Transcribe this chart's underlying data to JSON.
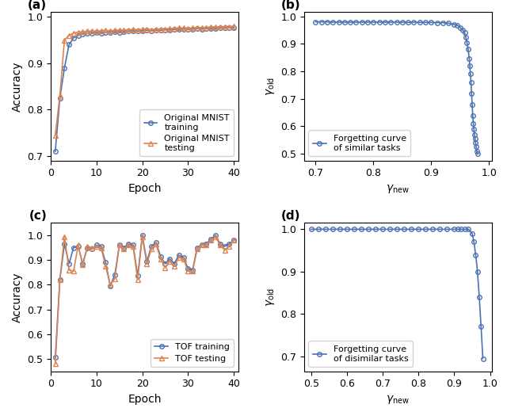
{
  "panel_a": {
    "train_x": [
      1,
      2,
      3,
      4,
      5,
      6,
      7,
      8,
      9,
      10,
      11,
      12,
      13,
      14,
      15,
      16,
      17,
      18,
      19,
      20,
      21,
      22,
      23,
      24,
      25,
      26,
      27,
      28,
      29,
      30,
      31,
      32,
      33,
      34,
      35,
      36,
      37,
      38,
      39,
      40
    ],
    "train_y": [
      0.71,
      0.825,
      0.89,
      0.94,
      0.955,
      0.96,
      0.963,
      0.964,
      0.965,
      0.966,
      0.965,
      0.966,
      0.967,
      0.968,
      0.967,
      0.968,
      0.969,
      0.97,
      0.969,
      0.97,
      0.971,
      0.97,
      0.971,
      0.971,
      0.972,
      0.972,
      0.973,
      0.973,
      0.974,
      0.973,
      0.974,
      0.975,
      0.974,
      0.975,
      0.975,
      0.975,
      0.976,
      0.976,
      0.977,
      0.977
    ],
    "test_x": [
      1,
      2,
      3,
      4,
      5,
      6,
      7,
      8,
      9,
      10,
      11,
      12,
      13,
      14,
      15,
      16,
      17,
      18,
      19,
      20,
      21,
      22,
      23,
      24,
      25,
      26,
      27,
      28,
      29,
      30,
      31,
      32,
      33,
      34,
      35,
      36,
      37,
      38,
      39,
      40
    ],
    "test_y": [
      0.745,
      0.83,
      0.95,
      0.96,
      0.965,
      0.967,
      0.968,
      0.969,
      0.97,
      0.969,
      0.97,
      0.971,
      0.97,
      0.971,
      0.972,
      0.971,
      0.972,
      0.973,
      0.972,
      0.973,
      0.973,
      0.972,
      0.973,
      0.974,
      0.974,
      0.975,
      0.975,
      0.976,
      0.976,
      0.975,
      0.976,
      0.977,
      0.977,
      0.977,
      0.978,
      0.978,
      0.978,
      0.979,
      0.979,
      0.98
    ],
    "xlabel": "Epoch",
    "ylabel": "Accuracy",
    "xlim": [
      0,
      41
    ],
    "ylim": [
      0.69,
      1.01
    ],
    "yticks": [
      0.7,
      0.8,
      0.9,
      1.0
    ],
    "xticks": [
      0,
      10,
      20,
      30,
      40
    ],
    "legend": [
      "Original MNIST\ntraining",
      "Original MNIST\ntesting"
    ],
    "label": "(a)"
  },
  "panel_b": {
    "x": [
      0.7,
      0.71,
      0.72,
      0.73,
      0.74,
      0.75,
      0.76,
      0.77,
      0.78,
      0.79,
      0.8,
      0.81,
      0.82,
      0.83,
      0.84,
      0.85,
      0.86,
      0.87,
      0.88,
      0.89,
      0.9,
      0.91,
      0.92,
      0.93,
      0.94,
      0.945,
      0.95,
      0.955,
      0.958,
      0.96,
      0.962,
      0.964,
      0.966,
      0.967,
      0.968,
      0.969,
      0.97,
      0.971,
      0.972,
      0.973,
      0.974,
      0.975,
      0.976,
      0.977,
      0.978,
      0.979,
      0.98
    ],
    "y": [
      0.98,
      0.98,
      0.98,
      0.979,
      0.979,
      0.979,
      0.979,
      0.979,
      0.979,
      0.979,
      0.979,
      0.979,
      0.979,
      0.979,
      0.979,
      0.979,
      0.978,
      0.979,
      0.978,
      0.978,
      0.978,
      0.977,
      0.977,
      0.975,
      0.97,
      0.968,
      0.96,
      0.95,
      0.94,
      0.925,
      0.905,
      0.88,
      0.845,
      0.82,
      0.79,
      0.76,
      0.72,
      0.68,
      0.64,
      0.61,
      0.59,
      0.57,
      0.555,
      0.54,
      0.525,
      0.51,
      0.5
    ],
    "xlabel": "$\\gamma_\\mathrm{new}$",
    "ylabel": "$\\gamma_\\mathrm{old}$",
    "xlim": [
      0.68,
      1.005
    ],
    "ylim": [
      0.475,
      1.015
    ],
    "yticks": [
      0.5,
      0.6,
      0.7,
      0.8,
      0.9,
      1.0
    ],
    "xticks": [
      0.7,
      0.8,
      0.9,
      1.0
    ],
    "legend": [
      "Forgetting curve\nof similar tasks"
    ],
    "label": "(b)"
  },
  "panel_c": {
    "train_x": [
      1,
      2,
      3,
      4,
      5,
      6,
      7,
      8,
      9,
      10,
      11,
      12,
      13,
      14,
      15,
      16,
      17,
      18,
      19,
      20,
      21,
      22,
      23,
      24,
      25,
      26,
      27,
      28,
      29,
      30,
      31,
      32,
      33,
      34,
      35,
      36,
      37,
      38,
      39,
      40
    ],
    "train_y": [
      0.505,
      0.82,
      0.965,
      0.885,
      0.95,
      0.955,
      0.885,
      0.95,
      0.945,
      0.96,
      0.955,
      0.89,
      0.795,
      0.84,
      0.96,
      0.95,
      0.965,
      0.96,
      0.835,
      1.0,
      0.895,
      0.955,
      0.97,
      0.915,
      0.885,
      0.905,
      0.885,
      0.92,
      0.91,
      0.865,
      0.86,
      0.95,
      0.96,
      0.965,
      0.985,
      1.0,
      0.965,
      0.955,
      0.965,
      0.98
    ],
    "test_x": [
      1,
      2,
      3,
      4,
      5,
      6,
      7,
      8,
      9,
      10,
      11,
      12,
      13,
      14,
      15,
      16,
      17,
      18,
      19,
      20,
      21,
      22,
      23,
      24,
      25,
      26,
      27,
      28,
      29,
      30,
      31,
      32,
      33,
      34,
      35,
      36,
      37,
      38,
      39,
      40
    ],
    "test_y": [
      0.48,
      0.82,
      0.995,
      0.86,
      0.855,
      0.96,
      0.88,
      0.955,
      0.95,
      0.955,
      0.95,
      0.875,
      0.8,
      0.825,
      0.96,
      0.945,
      0.96,
      0.955,
      0.82,
      0.995,
      0.885,
      0.945,
      0.965,
      0.905,
      0.87,
      0.895,
      0.875,
      0.91,
      0.905,
      0.855,
      0.855,
      0.945,
      0.96,
      0.96,
      0.98,
      0.995,
      0.96,
      0.94,
      0.955,
      0.98
    ],
    "xlabel": "Epoch",
    "ylabel": "Accuracy",
    "xlim": [
      0,
      41
    ],
    "ylim": [
      0.45,
      1.05
    ],
    "yticks": [
      0.5,
      0.6,
      0.7,
      0.8,
      0.9,
      1.0
    ],
    "xticks": [
      0,
      10,
      20,
      30,
      40
    ],
    "legend": [
      "TOF training",
      "TOF testing"
    ],
    "label": "(c)"
  },
  "panel_d": {
    "x": [
      0.5,
      0.52,
      0.54,
      0.56,
      0.58,
      0.6,
      0.62,
      0.64,
      0.66,
      0.68,
      0.7,
      0.72,
      0.74,
      0.76,
      0.78,
      0.8,
      0.82,
      0.84,
      0.86,
      0.88,
      0.9,
      0.91,
      0.92,
      0.93,
      0.94,
      0.95,
      0.955,
      0.96,
      0.965,
      0.97,
      0.975,
      0.98
    ],
    "y": [
      1.0,
      1.0,
      1.0,
      1.0,
      1.0,
      1.0,
      1.0,
      1.0,
      1.0,
      1.0,
      1.0,
      1.0,
      1.0,
      1.0,
      1.0,
      1.0,
      1.0,
      1.0,
      1.0,
      1.0,
      1.0,
      1.0,
      1.0,
      1.0,
      1.0,
      0.99,
      0.97,
      0.94,
      0.9,
      0.84,
      0.77,
      0.695
    ],
    "xlabel": "$\\gamma_\\mathrm{new}$",
    "ylabel": "$\\gamma_\\mathrm{old}$",
    "xlim": [
      0.48,
      1.005
    ],
    "ylim": [
      0.665,
      1.015
    ],
    "yticks": [
      0.7,
      0.8,
      0.9,
      1.0
    ],
    "xticks": [
      0.5,
      0.6,
      0.7,
      0.8,
      0.9,
      1.0
    ],
    "legend": [
      "Forgetting curve\nof disimilar tasks"
    ],
    "label": "(d)"
  },
  "color_blue": "#4C72B0",
  "color_orange": "#DD8452",
  "line_width": 1.2,
  "marker_size": 4,
  "tick_fontsize": 9,
  "label_fontsize": 10,
  "legend_fontsize": 8
}
